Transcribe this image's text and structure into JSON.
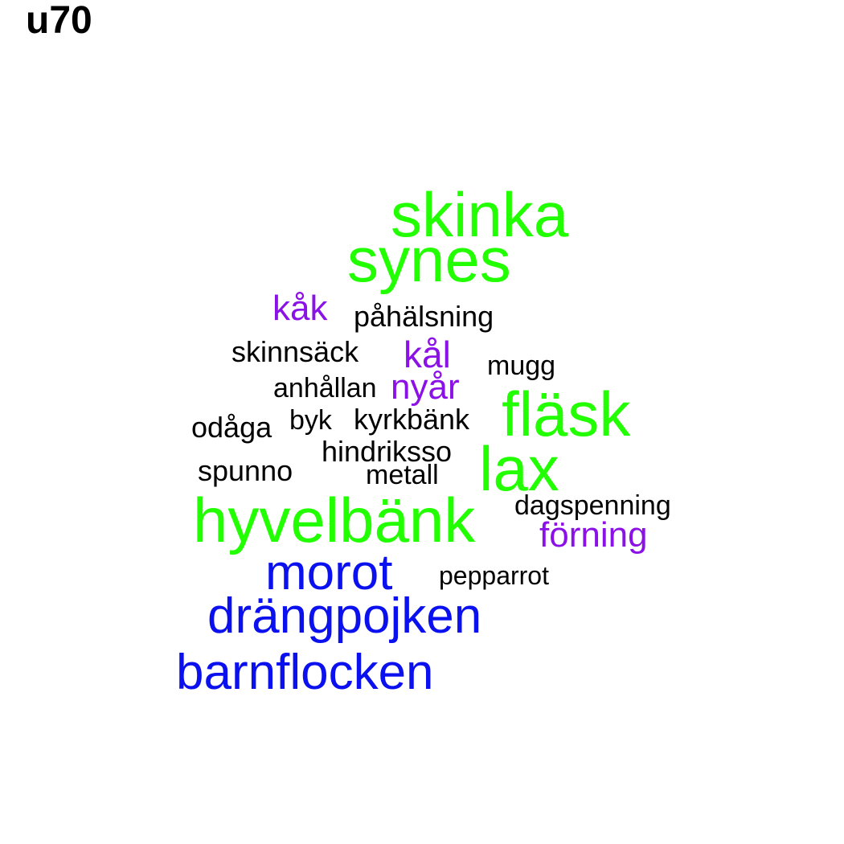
{
  "title": "u70",
  "colors": {
    "green": "#22ff00",
    "purple": "#8b12e6",
    "blue": "#0a10ee",
    "black": "#000000"
  },
  "words": [
    {
      "text": "skinka",
      "color_group": "green"
    },
    {
      "text": "synes",
      "color_group": "green"
    },
    {
      "text": "kåk",
      "color_group": "purple"
    },
    {
      "text": "påhälsning",
      "color_group": "black"
    },
    {
      "text": "skinnsäck",
      "color_group": "black"
    },
    {
      "text": "kål",
      "color_group": "purple"
    },
    {
      "text": "mugg",
      "color_group": "black"
    },
    {
      "text": "anhållan",
      "color_group": "black"
    },
    {
      "text": "nyår",
      "color_group": "purple"
    },
    {
      "text": "fläsk",
      "color_group": "green"
    },
    {
      "text": "odåga",
      "color_group": "black"
    },
    {
      "text": "byk",
      "color_group": "black"
    },
    {
      "text": "kyrkbänk",
      "color_group": "black"
    },
    {
      "text": "hindriksso",
      "color_group": "black"
    },
    {
      "text": "lax",
      "color_group": "green"
    },
    {
      "text": "spunno",
      "color_group": "black"
    },
    {
      "text": "metall",
      "color_group": "black"
    },
    {
      "text": "hyvelbänk",
      "color_group": "green"
    },
    {
      "text": "dagspenning",
      "color_group": "black"
    },
    {
      "text": "förning",
      "color_group": "purple"
    },
    {
      "text": "morot",
      "color_group": "blue"
    },
    {
      "text": "pepparrot",
      "color_group": "black"
    },
    {
      "text": "drängpojken",
      "color_group": "blue"
    },
    {
      "text": "barnflocken",
      "color_group": "blue"
    }
  ]
}
